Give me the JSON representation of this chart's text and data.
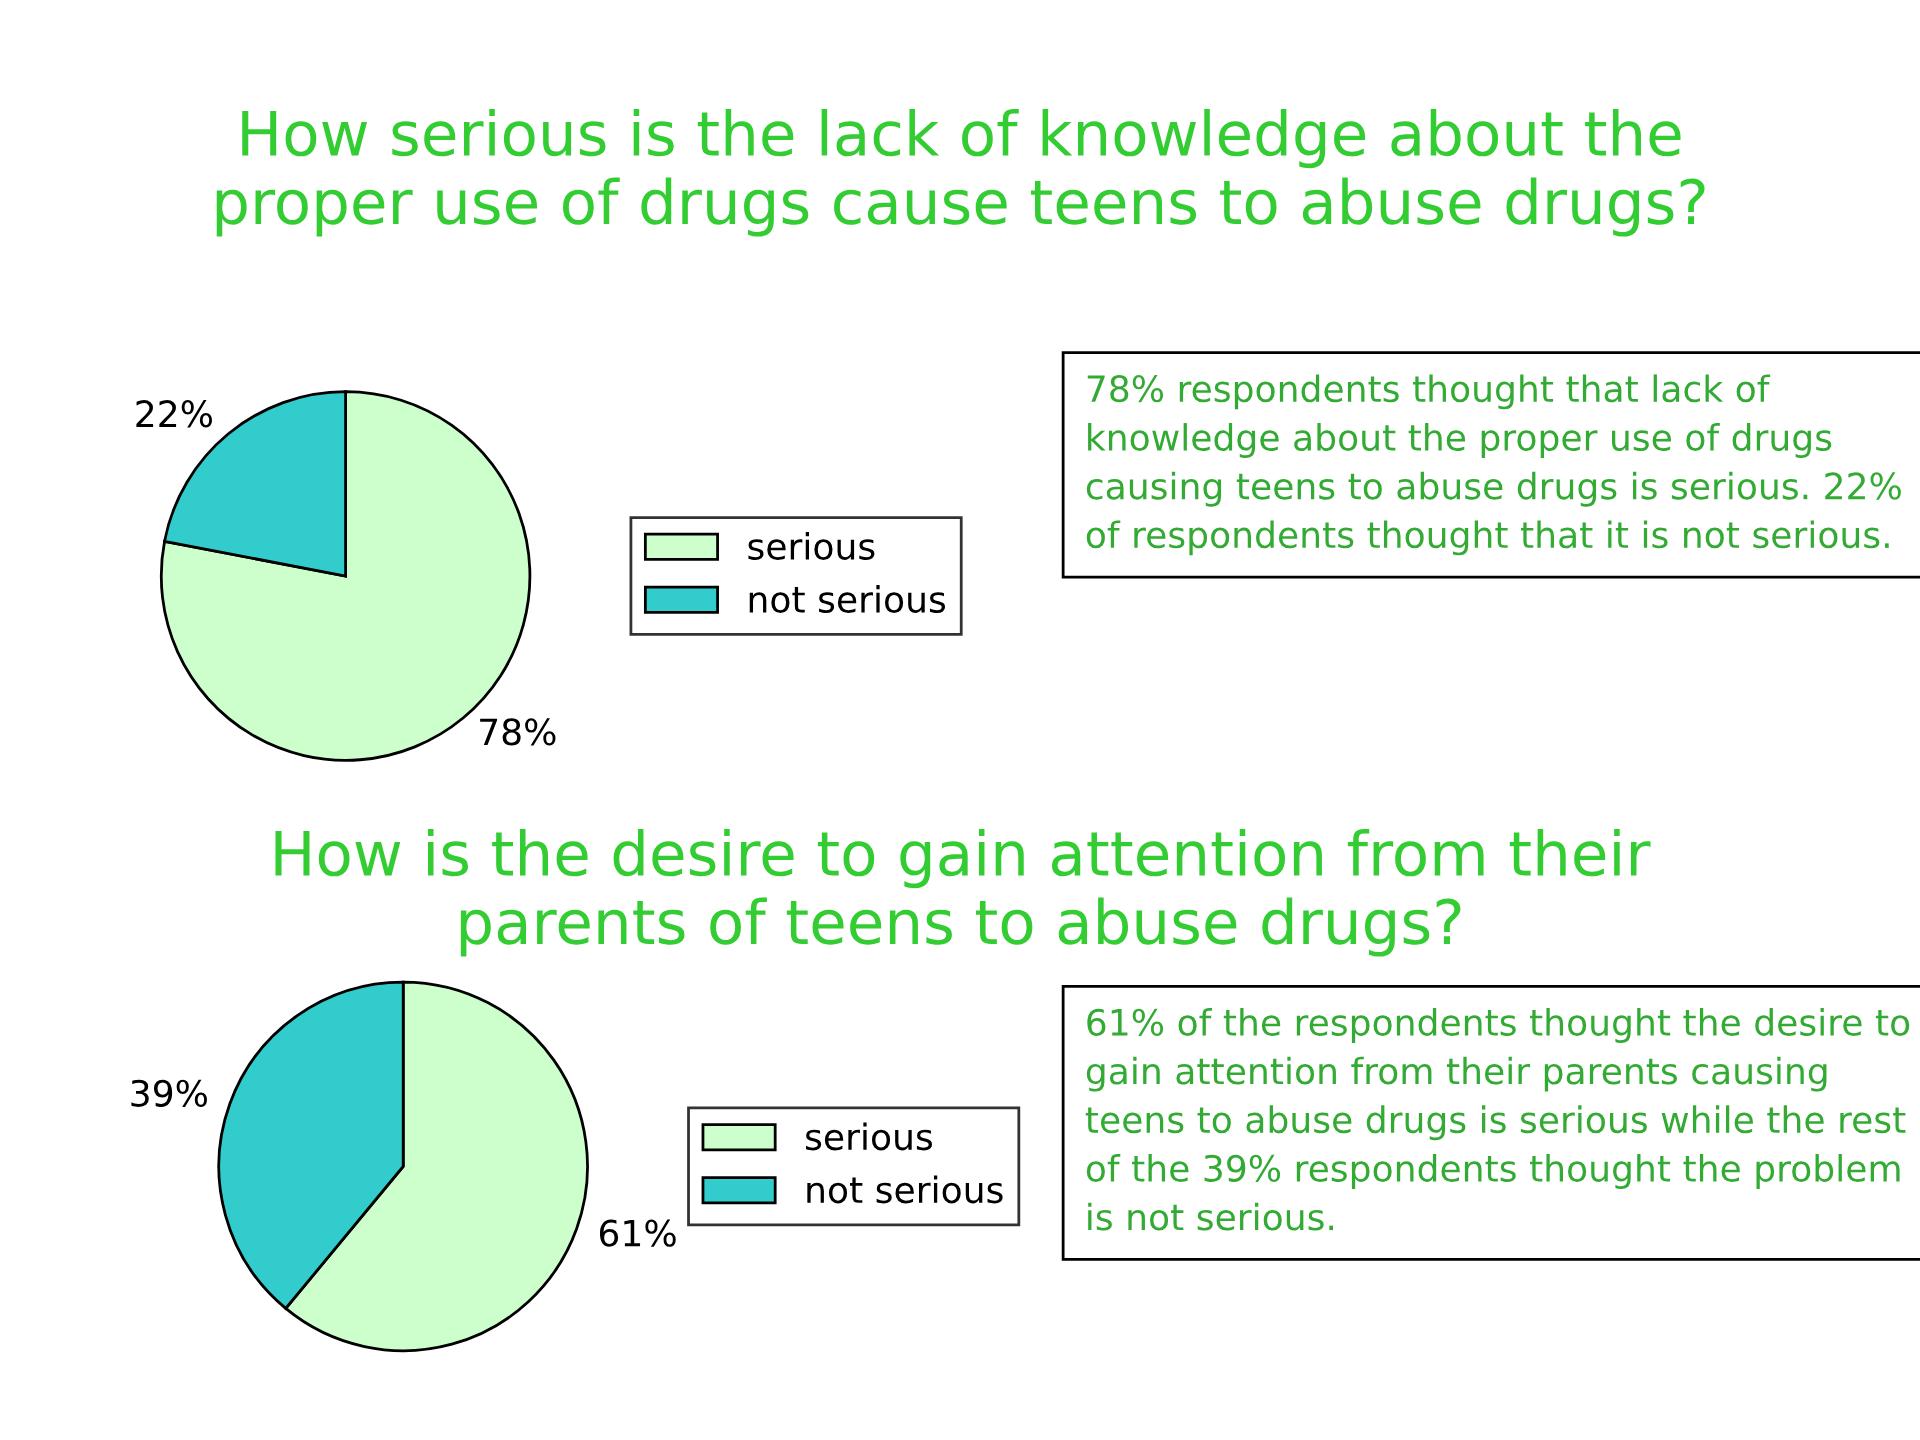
{
  "chart_data": [
    {
      "type": "pie",
      "title": "How serious is the lack of knowledge about the\nproper use of drugs cause teens to abuse drugs?",
      "categories": [
        "serious",
        "not serious"
      ],
      "values": [
        78,
        22
      ],
      "colors": [
        "#ccffcc",
        "#33cccc"
      ],
      "value_labels": [
        "78%",
        "22%"
      ],
      "legend": "right",
      "annotations": [
        "78% respondents thought that lack of knowledge about the proper use of drugs causing teens to abuse drugs is serious. 22% of respondents thought that it is not serious."
      ]
    },
    {
      "type": "pie",
      "title": "How is the desire to gain attention from their\nparents of teens to abuse drugs?",
      "categories": [
        "serious",
        "not serious"
      ],
      "values": [
        61,
        39
      ],
      "colors": [
        "#ccffcc",
        "#33cccc"
      ],
      "value_labels": [
        "61%",
        "39%"
      ],
      "legend": "right",
      "annotations": [
        "61% of the respondents thought the desire to gain attention from their parents causing teens to abuse drugs is serious while the rest of the 39% respondents thought the problem is not serious."
      ]
    }
  ]
}
